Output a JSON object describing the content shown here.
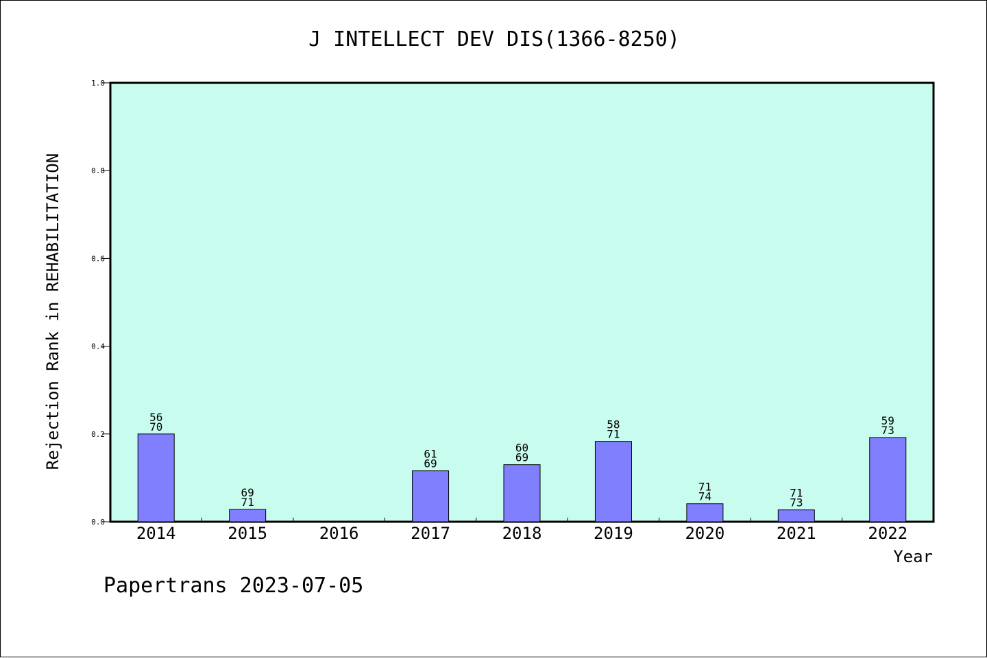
{
  "chart_data": {
    "type": "bar",
    "title": "J INTELLECT DEV DIS(1366-8250)",
    "xlabel": "Year",
    "ylabel": "Rejection Rank in REHABILITATION",
    "ylim": [
      0.0,
      1.0
    ],
    "yticks": [
      "0.0",
      "0.2",
      "0.4",
      "0.6",
      "0.8",
      "1.0"
    ],
    "categories": [
      "2014",
      "2015",
      "2016",
      "2017",
      "2018",
      "2019",
      "2020",
      "2021",
      "2022"
    ],
    "values": [
      0.2,
      0.028,
      null,
      0.116,
      0.13,
      0.183,
      0.041,
      0.027,
      0.192
    ],
    "labels_top": [
      "56",
      "69",
      "",
      "61",
      "60",
      "58",
      "71",
      "71",
      "59"
    ],
    "labels_bottom": [
      "70",
      "71",
      "",
      "69",
      "69",
      "71",
      "74",
      "73",
      "73"
    ],
    "grid": false,
    "colors": {
      "plot_background": "#c8fcee",
      "bar_fill": "#8080ff",
      "bar_stroke": "#000000"
    }
  },
  "footer": "Papertrans 2023-07-05"
}
